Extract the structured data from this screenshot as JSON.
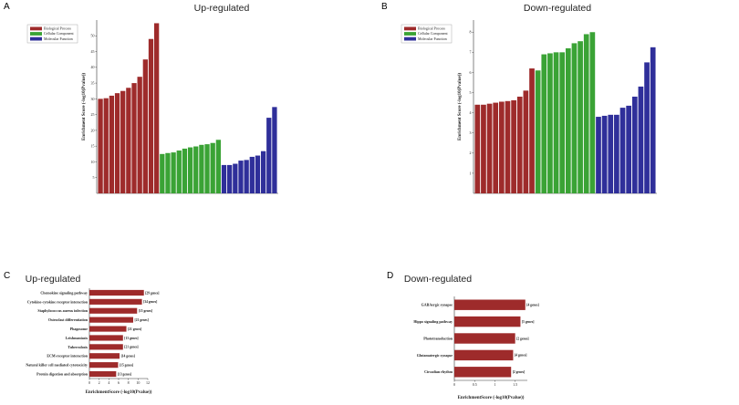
{
  "chart_data": [
    {
      "id": "A",
      "type": "bar",
      "panel_label": "A",
      "title": "Up-regulated",
      "ylabel": "Enrichment Score (-log10(Pvalue))",
      "ylim": [
        0,
        55
      ],
      "yticks": [
        5,
        10,
        15,
        20,
        25,
        30,
        35,
        40,
        45,
        50
      ],
      "legend": {
        "placement": "top-left",
        "entries": [
          {
            "name": "Biological Process",
            "color": "#9e2b2b"
          },
          {
            "name": "Cellular Component",
            "color": "#3aa335"
          },
          {
            "name": "Molecular Function",
            "color": "#2f2f9a"
          }
        ]
      },
      "series": [
        {
          "name": "Biological Process",
          "color": "#9e2b2b",
          "values": [
            30.0,
            30.2,
            31.0,
            31.8,
            32.5,
            33.5,
            35.0,
            37.0,
            42.5,
            49.0,
            54.0
          ]
        },
        {
          "name": "Cellular Component",
          "color": "#3aa335",
          "values": [
            12.5,
            12.8,
            13.0,
            13.6,
            14.2,
            14.6,
            14.9,
            15.4,
            15.6,
            16.0,
            17.0
          ]
        },
        {
          "name": "Molecular Function",
          "color": "#2f2f9a",
          "values": [
            9.0,
            9.0,
            9.4,
            10.4,
            10.6,
            11.6,
            12.0,
            13.4,
            24.0,
            27.4
          ]
        }
      ]
    },
    {
      "id": "B",
      "type": "bar",
      "panel_label": "B",
      "title": "Down-regulated",
      "ylabel": "Enrichment Score (-log10(Pvalue))",
      "ylim": [
        0,
        8.6
      ],
      "yticks": [
        1,
        2,
        3,
        4,
        5,
        6,
        7,
        8
      ],
      "legend": {
        "placement": "top-left",
        "entries": [
          {
            "name": "Biological Process",
            "color": "#9e2b2b"
          },
          {
            "name": "Cellular Component",
            "color": "#3aa335"
          },
          {
            "name": "Molecular Function",
            "color": "#2f2f9a"
          }
        ]
      },
      "series": [
        {
          "name": "Biological Process",
          "color": "#9e2b2b",
          "values": [
            4.4,
            4.4,
            4.45,
            4.5,
            4.55,
            4.58,
            4.62,
            4.8,
            5.1,
            6.2
          ]
        },
        {
          "name": "Cellular Component",
          "color": "#3aa335",
          "values": [
            6.1,
            6.9,
            6.95,
            7.0,
            7.0,
            7.2,
            7.45,
            7.55,
            7.9,
            8.0
          ]
        },
        {
          "name": "Molecular Function",
          "color": "#2f2f9a",
          "values": [
            3.8,
            3.85,
            3.9,
            3.9,
            4.25,
            4.35,
            4.8,
            5.3,
            6.5,
            7.25
          ]
        }
      ]
    },
    {
      "id": "C",
      "type": "bar",
      "orientation": "horizontal",
      "panel_label": "C",
      "title": "Up-regulated",
      "xlabel": "EnrichmentScore (-log10(Pvalue))",
      "xlim": [
        0,
        12
      ],
      "xticks": [
        0,
        2,
        4,
        6,
        8,
        10,
        12
      ],
      "bar_color": "#9e2b2b",
      "categories": [
        "Chemokine signaling pathway",
        "Cytokine-cytokine receptor interaction",
        "Staphylococcus aureus infection",
        "Osteoclast differentiation",
        "Phagosome",
        "Leishmaniasis",
        "Tuberculosis",
        "ECM-receptor interaction",
        "Natural killer cell mediated cytotoxicity",
        "Protein digestion and absorption"
      ],
      "values": [
        11.2,
        10.8,
        9.8,
        9.0,
        7.6,
        6.9,
        6.9,
        6.2,
        5.9,
        5.5
      ],
      "data_labels": [
        "[29 genes]",
        "[34 genes]",
        "[15 genes]",
        "[21 genes]",
        "[21 genes]",
        "[13 genes]",
        "[21 genes]",
        "[14 genes]",
        "[15 genes]",
        "[13 genes]"
      ]
    },
    {
      "id": "D",
      "type": "bar",
      "orientation": "horizontal",
      "panel_label": "D",
      "title": "Down-regulated",
      "xlabel": "EnrichmentScore (-log10(Pvalue))",
      "xlim": [
        0,
        1.8
      ],
      "xticks": [
        0,
        0.5,
        1,
        1.5
      ],
      "bar_color": "#9e2b2b",
      "categories": [
        "GABAergic synapse",
        "Hippo signaling pathway",
        "Phototransduction",
        "Glutamatergic synapse",
        "Circadian rhythm"
      ],
      "values": [
        1.75,
        1.63,
        1.5,
        1.45,
        1.4
      ],
      "data_labels": [
        "[4 genes]",
        "[5 genes]",
        "[2 genes]",
        "[4 genes]",
        "[2 genes]"
      ]
    }
  ]
}
